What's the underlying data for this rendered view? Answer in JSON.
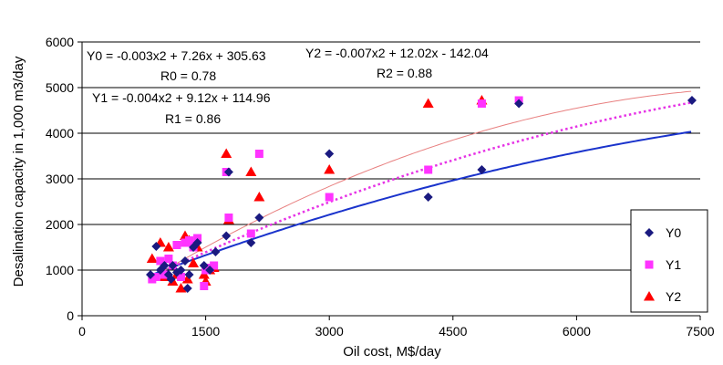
{
  "chart_data": {
    "type": "scatter",
    "title": "",
    "xlabel": "Oil cost, M$/day",
    "ylabel": "Desalination capacity in 1,000 m3/day",
    "xlim": [
      0,
      7500
    ],
    "ylim": [
      0,
      6000
    ],
    "xticks": [
      0,
      1500,
      3000,
      4500,
      6000,
      7500
    ],
    "yticks": [
      0,
      1000,
      2000,
      3000,
      4000,
      5000,
      6000
    ],
    "xtick_labels": [
      "0",
      "1500",
      "3000",
      "4500",
      "6000",
      "7500"
    ],
    "ytick_labels": [
      "0",
      "1000",
      "2000",
      "3000",
      "4000",
      "5000",
      "6000"
    ],
    "grid": "horizontal",
    "legend_position": "bottom-right",
    "series": [
      {
        "name": "Y0",
        "marker": "diamond",
        "color": "#1a1a80",
        "x": [
          830,
          900,
          950,
          1000,
          1050,
          1080,
          1100,
          1150,
          1200,
          1250,
          1280,
          1300,
          1350,
          1400,
          1480,
          1550,
          1620,
          1750,
          1780,
          2050,
          2150,
          3000,
          4200,
          4850,
          5300,
          7400
        ],
        "y": [
          900,
          1520,
          1000,
          1100,
          900,
          800,
          1100,
          950,
          1000,
          1200,
          600,
          900,
          1500,
          1600,
          1100,
          1000,
          1400,
          1750,
          3150,
          1600,
          2150,
          3550,
          2600,
          3200,
          4650,
          4720
        ]
      },
      {
        "name": "Y1",
        "marker": "square",
        "color": "#ff33ff",
        "x": [
          850,
          900,
          950,
          1000,
          1050,
          1100,
          1150,
          1200,
          1250,
          1300,
          1350,
          1400,
          1480,
          1500,
          1550,
          1600,
          1750,
          1780,
          2050,
          2150,
          3000,
          4200,
          4850,
          5300
        ],
        "y": [
          800,
          850,
          1200,
          900,
          1250,
          1100,
          1550,
          850,
          1600,
          1650,
          1500,
          1700,
          650,
          1000,
          1050,
          1100,
          3150,
          2150,
          1800,
          3550,
          2600,
          3200,
          4650,
          4720
        ]
      },
      {
        "name": "Y2",
        "marker": "triangle",
        "color": "#ff0000",
        "x": [
          850,
          950,
          1000,
          1050,
          1100,
          1150,
          1200,
          1250,
          1280,
          1300,
          1350,
          1400,
          1480,
          1500,
          1550,
          1600,
          1750,
          1780,
          2050,
          2150,
          3000,
          4200,
          4850
        ],
        "y": [
          1250,
          1600,
          850,
          1500,
          750,
          900,
          600,
          1750,
          800,
          1650,
          1150,
          1500,
          900,
          750,
          1000,
          1050,
          3550,
          2100,
          3150,
          2600,
          3200,
          4650,
          4720
        ]
      }
    ],
    "trendlines": [
      {
        "series": "Y0",
        "coeffs": [
          -3e-05,
          0.726,
          305.63
        ],
        "style": "solid",
        "color": "#1a33cc",
        "width": 2
      },
      {
        "series": "Y1",
        "coeffs": [
          -4e-05,
          0.912,
          114.96
        ],
        "style": "dotted",
        "color": "#e633e6",
        "width": 2.5
      },
      {
        "series": "Y2",
        "coeffs": [
          -7e-05,
          1.202,
          -142.04
        ],
        "style": "solid",
        "color": "#e88080",
        "width": 1
      }
    ],
    "annotations": [
      {
        "key": "eq0",
        "text": "Y0 = -0.003x2 + 7.26x + 305.63"
      },
      {
        "key": "r0",
        "text": "R0 = 0.78"
      },
      {
        "key": "eq1",
        "text": "Y1 = -0.004x2 + 9.12x + 114.96"
      },
      {
        "key": "r1",
        "text": "R1 = 0.86"
      },
      {
        "key": "eq2",
        "text": "Y2 = -0.007x2 + 12.02x - 142.04"
      },
      {
        "key": "r2",
        "text": "R2 = 0.88"
      }
    ]
  }
}
